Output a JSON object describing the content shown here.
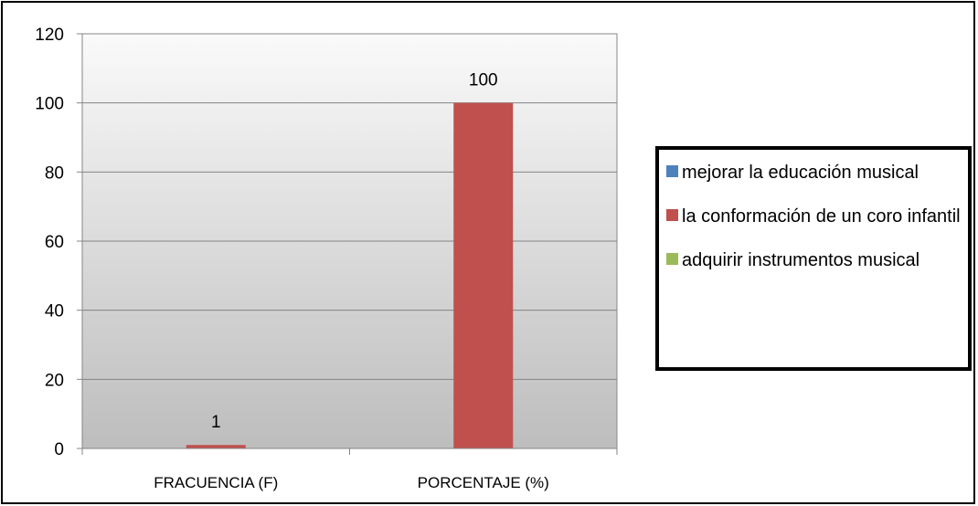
{
  "chart_data": {
    "type": "bar",
    "categories": [
      "FRACUENCIA (F)",
      "PORCENTAJE (%)"
    ],
    "series": [
      {
        "name": "mejorar la educación musical",
        "color": "#4F81BD",
        "values": [
          0,
          0
        ]
      },
      {
        "name": "la conformación de un coro infantil",
        "color": "#C0504D",
        "values": [
          1,
          100
        ]
      },
      {
        "name": "adquirir instrumentos musical",
        "color": "#9BBB59",
        "values": [
          0,
          0
        ]
      }
    ],
    "data_labels": [
      "1",
      "100"
    ],
    "ylim": [
      0,
      120
    ],
    "yticks": [
      0,
      20,
      40,
      60,
      80,
      100,
      120
    ],
    "grid": true,
    "legend_position": "right",
    "title": "",
    "xlabel": "",
    "ylabel": ""
  }
}
